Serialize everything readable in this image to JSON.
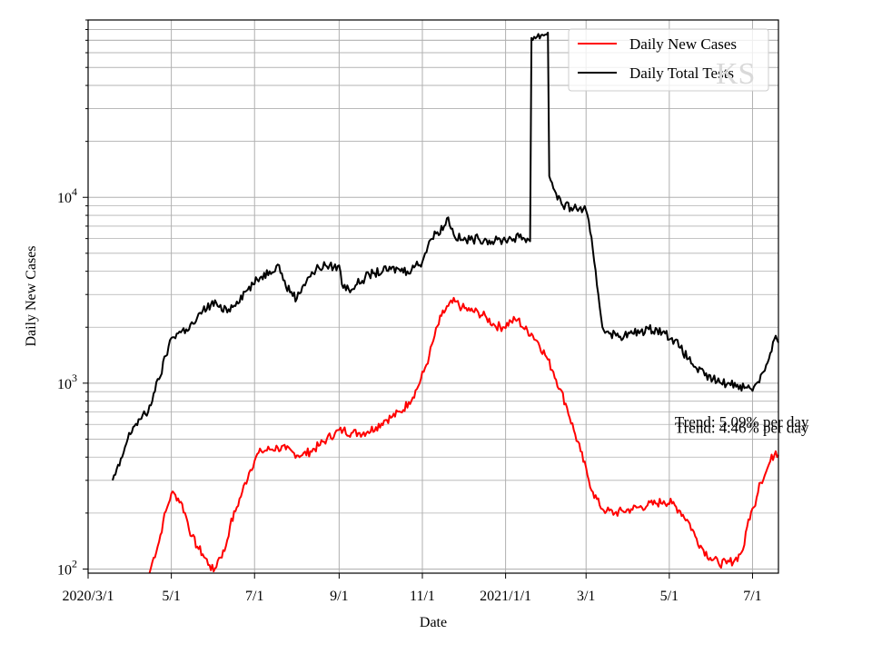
{
  "chart_data": {
    "type": "line",
    "title": "",
    "xlabel": "Date",
    "ylabel": "Daily New Cases",
    "yscale": "log",
    "ylim": [
      95,
      90000
    ],
    "xlim": [
      "2020-03-01",
      "2021-07-20"
    ],
    "grid": true,
    "legend_position": "top-right",
    "x_ticks": [
      {
        "date": "2020-03-01",
        "label": "2020/3/1"
      },
      {
        "date": "2020-05-01",
        "label": "5/1"
      },
      {
        "date": "2020-07-01",
        "label": "7/1"
      },
      {
        "date": "2020-09-01",
        "label": "9/1"
      },
      {
        "date": "2020-11-01",
        "label": "11/1"
      },
      {
        "date": "2021-01-01",
        "label": "2021/1/1"
      },
      {
        "date": "2021-03-01",
        "label": "3/1"
      },
      {
        "date": "2021-05-01",
        "label": "5/1"
      },
      {
        "date": "2021-07-01",
        "label": "7/1"
      }
    ],
    "y_ticks": [
      {
        "value": 100,
        "base": "10",
        "exp": "2"
      },
      {
        "value": 1000,
        "base": "10",
        "exp": "3"
      },
      {
        "value": 10000,
        "base": "10",
        "exp": "4"
      }
    ],
    "series": [
      {
        "name": "Daily New Cases",
        "color": "#ff0000",
        "points": [
          [
            "2020-04-15",
            95
          ],
          [
            "2020-04-18",
            115
          ],
          [
            "2020-04-22",
            140
          ],
          [
            "2020-04-25",
            180
          ],
          [
            "2020-04-28",
            215
          ],
          [
            "2020-05-01",
            255
          ],
          [
            "2020-05-04",
            250
          ],
          [
            "2020-05-08",
            230
          ],
          [
            "2020-05-12",
            190
          ],
          [
            "2020-05-16",
            150
          ],
          [
            "2020-05-20",
            132
          ],
          [
            "2020-05-24",
            120
          ],
          [
            "2020-05-29",
            105
          ],
          [
            "2020-06-01",
            97
          ],
          [
            "2020-06-05",
            115
          ],
          [
            "2020-06-09",
            125
          ],
          [
            "2020-06-13",
            170
          ],
          [
            "2020-06-18",
            215
          ],
          [
            "2020-06-22",
            260
          ],
          [
            "2020-06-27",
            330
          ],
          [
            "2020-07-02",
            400
          ],
          [
            "2020-07-06",
            430
          ],
          [
            "2020-07-12",
            440
          ],
          [
            "2020-07-18",
            450
          ],
          [
            "2020-07-24",
            440
          ],
          [
            "2020-07-30",
            420
          ],
          [
            "2020-08-05",
            410
          ],
          [
            "2020-08-11",
            430
          ],
          [
            "2020-08-17",
            460
          ],
          [
            "2020-08-23",
            500
          ],
          [
            "2020-08-29",
            540
          ],
          [
            "2020-09-04",
            560
          ],
          [
            "2020-09-10",
            540
          ],
          [
            "2020-09-16",
            540
          ],
          [
            "2020-09-22",
            550
          ],
          [
            "2020-09-28",
            580
          ],
          [
            "2020-10-04",
            630
          ],
          [
            "2020-10-10",
            660
          ],
          [
            "2020-10-16",
            700
          ],
          [
            "2020-10-22",
            790
          ],
          [
            "2020-10-28",
            930
          ],
          [
            "2020-11-02",
            1150
          ],
          [
            "2020-11-06",
            1400
          ],
          [
            "2020-11-10",
            1800
          ],
          [
            "2020-11-15",
            2300
          ],
          [
            "2020-11-20",
            2600
          ],
          [
            "2020-11-25",
            2750
          ],
          [
            "2020-11-30",
            2550
          ],
          [
            "2020-12-06",
            2450
          ],
          [
            "2020-12-12",
            2400
          ],
          [
            "2020-12-18",
            2250
          ],
          [
            "2020-12-24",
            2050
          ],
          [
            "2020-12-30",
            2000
          ],
          [
            "2021-01-05",
            2150
          ],
          [
            "2021-01-10",
            2200
          ],
          [
            "2021-01-15",
            1950
          ],
          [
            "2021-01-20",
            1850
          ],
          [
            "2021-01-25",
            1650
          ],
          [
            "2021-01-31",
            1380
          ],
          [
            "2021-02-05",
            1150
          ],
          [
            "2021-02-10",
            930
          ],
          [
            "2021-02-15",
            740
          ],
          [
            "2021-02-20",
            560
          ],
          [
            "2021-02-25",
            430
          ],
          [
            "2021-03-02",
            320
          ],
          [
            "2021-03-06",
            260
          ],
          [
            "2021-03-11",
            220
          ],
          [
            "2021-03-16",
            205
          ],
          [
            "2021-03-22",
            200
          ],
          [
            "2021-03-28",
            205
          ],
          [
            "2021-04-03",
            210
          ],
          [
            "2021-04-09",
            215
          ],
          [
            "2021-04-15",
            220
          ],
          [
            "2021-04-21",
            225
          ],
          [
            "2021-04-27",
            232
          ],
          [
            "2021-05-03",
            225
          ],
          [
            "2021-05-09",
            205
          ],
          [
            "2021-05-15",
            180
          ],
          [
            "2021-05-20",
            150
          ],
          [
            "2021-05-25",
            130
          ],
          [
            "2021-05-31",
            115
          ],
          [
            "2021-06-06",
            108
          ],
          [
            "2021-06-12",
            107
          ],
          [
            "2021-06-18",
            112
          ],
          [
            "2021-06-22",
            120
          ],
          [
            "2021-06-25",
            135
          ],
          [
            "2021-06-28",
            185
          ],
          [
            "2021-07-02",
            215
          ],
          [
            "2021-07-06",
            290
          ],
          [
            "2021-07-10",
            320
          ],
          [
            "2021-07-14",
            380
          ],
          [
            "2021-07-18",
            430
          ],
          [
            "2021-07-20",
            410
          ]
        ]
      },
      {
        "name": "Daily Total Tests",
        "color": "#000000",
        "points": [
          [
            "2020-03-19",
            300
          ],
          [
            "2020-03-24",
            360
          ],
          [
            "2020-03-30",
            500
          ],
          [
            "2020-04-03",
            580
          ],
          [
            "2020-04-08",
            640
          ],
          [
            "2020-04-14",
            700
          ],
          [
            "2020-04-18",
            880
          ],
          [
            "2020-04-22",
            1050
          ],
          [
            "2020-04-27",
            1400
          ],
          [
            "2020-05-01",
            1750
          ],
          [
            "2020-05-05",
            1850
          ],
          [
            "2020-05-12",
            1950
          ],
          [
            "2020-05-19",
            2150
          ],
          [
            "2020-05-24",
            2450
          ],
          [
            "2020-05-30",
            2650
          ],
          [
            "2020-06-03",
            2700
          ],
          [
            "2020-06-07",
            2450
          ],
          [
            "2020-06-12",
            2500
          ],
          [
            "2020-06-18",
            2750
          ],
          [
            "2020-06-24",
            3100
          ],
          [
            "2020-06-30",
            3400
          ],
          [
            "2020-07-06",
            3750
          ],
          [
            "2020-07-12",
            4000
          ],
          [
            "2020-07-18",
            4350
          ],
          [
            "2020-07-21",
            3900
          ],
          [
            "2020-07-24",
            3300
          ],
          [
            "2020-07-28",
            3100
          ],
          [
            "2020-08-01",
            2850
          ],
          [
            "2020-08-05",
            3300
          ],
          [
            "2020-08-09",
            3700
          ],
          [
            "2020-08-13",
            3900
          ],
          [
            "2020-08-17",
            4200
          ],
          [
            "2020-08-22",
            4300
          ],
          [
            "2020-08-28",
            4200
          ],
          [
            "2020-09-01",
            4300
          ],
          [
            "2020-09-03",
            3400
          ],
          [
            "2020-09-08",
            3200
          ],
          [
            "2020-09-14",
            3400
          ],
          [
            "2020-09-20",
            3700
          ],
          [
            "2020-09-26",
            3900
          ],
          [
            "2020-10-03",
            4000
          ],
          [
            "2020-10-09",
            4100
          ],
          [
            "2020-10-15",
            4100
          ],
          [
            "2020-10-21",
            4000
          ],
          [
            "2020-10-27",
            4300
          ],
          [
            "2020-11-01",
            4500
          ],
          [
            "2020-11-03",
            5000
          ],
          [
            "2020-11-06",
            5800
          ],
          [
            "2020-11-12",
            6500
          ],
          [
            "2020-11-17",
            7000
          ],
          [
            "2020-11-20",
            7800
          ],
          [
            "2020-11-24",
            6300
          ],
          [
            "2020-11-30",
            5900
          ],
          [
            "2020-12-06",
            5900
          ],
          [
            "2020-12-12",
            6000
          ],
          [
            "2020-12-18",
            5900
          ],
          [
            "2020-12-24",
            5800
          ],
          [
            "2020-12-30",
            5900
          ],
          [
            "2021-01-05",
            6000
          ],
          [
            "2021-01-11",
            6100
          ],
          [
            "2021-01-17",
            6000
          ],
          [
            "2021-01-19",
            5800
          ],
          [
            "2021-01-20",
            72000
          ],
          [
            "2021-01-24",
            73000
          ],
          [
            "2021-01-28",
            75000
          ],
          [
            "2021-02-01",
            77000
          ],
          [
            "2021-02-02",
            13000
          ],
          [
            "2021-02-07",
            10500
          ],
          [
            "2021-02-12",
            9000
          ],
          [
            "2021-02-18",
            8800
          ],
          [
            "2021-02-24",
            8700
          ],
          [
            "2021-03-01",
            8500
          ],
          [
            "2021-03-04",
            6500
          ],
          [
            "2021-03-07",
            4500
          ],
          [
            "2021-03-10",
            3000
          ],
          [
            "2021-03-13",
            2000
          ],
          [
            "2021-03-17",
            1900
          ],
          [
            "2021-03-23",
            1800
          ],
          [
            "2021-03-29",
            1800
          ],
          [
            "2021-04-04",
            1850
          ],
          [
            "2021-04-10",
            1900
          ],
          [
            "2021-04-16",
            1950
          ],
          [
            "2021-04-22",
            1950
          ],
          [
            "2021-04-28",
            1850
          ],
          [
            "2021-05-03",
            1750
          ],
          [
            "2021-05-09",
            1550
          ],
          [
            "2021-05-15",
            1350
          ],
          [
            "2021-05-21",
            1200
          ],
          [
            "2021-05-27",
            1100
          ],
          [
            "2021-06-02",
            1050
          ],
          [
            "2021-06-08",
            1000
          ],
          [
            "2021-06-14",
            1000
          ],
          [
            "2021-06-20",
            980
          ],
          [
            "2021-06-26",
            950
          ],
          [
            "2021-06-30",
            930
          ],
          [
            "2021-07-04",
            1000
          ],
          [
            "2021-07-09",
            1150
          ],
          [
            "2021-07-14",
            1450
          ],
          [
            "2021-07-18",
            1800
          ],
          [
            "2021-07-20",
            1650
          ]
        ]
      }
    ],
    "annotations": [
      {
        "text": "Trend: 5.09% per day",
        "date": "2021-05-05",
        "value": 580
      },
      {
        "text": "Trend: 4.46% per day",
        "date": "2021-05-05",
        "value": 540
      }
    ],
    "watermark": "KS"
  }
}
